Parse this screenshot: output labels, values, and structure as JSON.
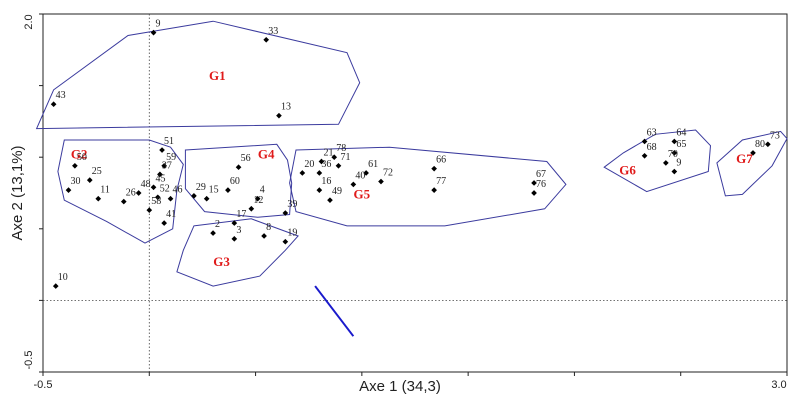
{
  "chart_data": {
    "type": "scatter",
    "xlabel": "Axe 1 (34,3)",
    "ylabel": "Axe 2 (13,1%)",
    "xlim": [
      -0.5,
      3.0
    ],
    "ylim": [
      -0.5,
      2.0
    ],
    "x_tick_labels": [
      "-0.5",
      "3.0"
    ],
    "y_tick_labels": [
      "2.0",
      "-0.5"
    ],
    "colors": {
      "group_label": "#e01b1b",
      "hull": "#3b3b9e",
      "arrow": "#1a1acc",
      "point": "#000000"
    },
    "points": [
      {
        "id": "9",
        "x": 0.02,
        "y": 1.87
      },
      {
        "id": "33",
        "x": 0.55,
        "y": 1.82
      },
      {
        "id": "43",
        "x": -0.45,
        "y": 1.37
      },
      {
        "id": "13",
        "x": 0.61,
        "y": 1.29
      },
      {
        "id": "51",
        "x": 0.06,
        "y": 1.05
      },
      {
        "id": "50",
        "x": -0.35,
        "y": 0.94
      },
      {
        "id": "25",
        "x": -0.28,
        "y": 0.84
      },
      {
        "id": "30",
        "x": -0.38,
        "y": 0.77
      },
      {
        "id": "59",
        "x": 0.07,
        "y": 0.94
      },
      {
        "id": "37",
        "x": 0.05,
        "y": 0.88
      },
      {
        "id": "45",
        "x": 0.02,
        "y": 0.79
      },
      {
        "id": "48",
        "x": -0.05,
        "y": 0.75
      },
      {
        "id": "52",
        "x": 0.04,
        "y": 0.72
      },
      {
        "id": "58",
        "x": 0.0,
        "y": 0.63
      },
      {
        "id": "41",
        "x": 0.07,
        "y": 0.54
      },
      {
        "id": "11",
        "x": -0.24,
        "y": 0.71
      },
      {
        "id": "26",
        "x": -0.12,
        "y": 0.69
      },
      {
        "id": "46",
        "x": 0.1,
        "y": 0.71
      },
      {
        "id": "56",
        "x": 0.42,
        "y": 0.93
      },
      {
        "id": "60",
        "x": 0.37,
        "y": 0.77
      },
      {
        "id": "29",
        "x": 0.21,
        "y": 0.73
      },
      {
        "id": "15",
        "x": 0.27,
        "y": 0.71
      },
      {
        "id": "4",
        "x": 0.51,
        "y": 0.71
      },
      {
        "id": "12",
        "x": 0.48,
        "y": 0.64
      },
      {
        "id": "39",
        "x": 0.64,
        "y": 0.61
      },
      {
        "id": "17",
        "x": 0.4,
        "y": 0.54
      },
      {
        "id": "2",
        "x": 0.3,
        "y": 0.47
      },
      {
        "id": "8",
        "x": 0.54,
        "y": 0.45
      },
      {
        "id": "19",
        "x": 0.64,
        "y": 0.41
      },
      {
        "id": "3",
        "x": 0.4,
        "y": 0.43
      },
      {
        "id": "21",
        "x": 0.81,
        "y": 0.97
      },
      {
        "id": "78",
        "x": 0.87,
        "y": 1.0
      },
      {
        "id": "71",
        "x": 0.89,
        "y": 0.94
      },
      {
        "id": "20",
        "x": 0.72,
        "y": 0.89
      },
      {
        "id": "36",
        "x": 0.8,
        "y": 0.89
      },
      {
        "id": "61",
        "x": 1.02,
        "y": 0.89
      },
      {
        "id": "72",
        "x": 1.09,
        "y": 0.83
      },
      {
        "id": "40",
        "x": 0.96,
        "y": 0.81
      },
      {
        "id": "16",
        "x": 0.8,
        "y": 0.77
      },
      {
        "id": "49",
        "x": 0.85,
        "y": 0.7
      },
      {
        "id": "66",
        "x": 1.34,
        "y": 0.92
      },
      {
        "id": "77",
        "x": 1.34,
        "y": 0.77
      },
      {
        "id": "67",
        "x": 1.81,
        "y": 0.82
      },
      {
        "id": "76",
        "x": 1.81,
        "y": 0.75
      },
      {
        "id": "63",
        "x": 2.33,
        "y": 1.11
      },
      {
        "id": "64",
        "x": 2.47,
        "y": 1.11
      },
      {
        "id": "65",
        "x": 2.47,
        "y": 1.03
      },
      {
        "id": "68",
        "x": 2.33,
        "y": 1.01
      },
      {
        "id": "70",
        "x": 2.43,
        "y": 0.96
      },
      {
        "id": "9",
        "x": 2.47,
        "y": 0.9
      },
      {
        "id": "73",
        "x": 2.91,
        "y": 1.09
      },
      {
        "id": "80",
        "x": 2.84,
        "y": 1.03
      },
      {
        "id": "10",
        "x": -0.44,
        "y": 0.1
      }
    ],
    "groups": [
      {
        "name": "G1"
      },
      {
        "name": "G2"
      },
      {
        "name": "G3"
      },
      {
        "name": "G4"
      },
      {
        "name": "G5"
      },
      {
        "name": "G6"
      },
      {
        "name": "G7"
      }
    ]
  }
}
